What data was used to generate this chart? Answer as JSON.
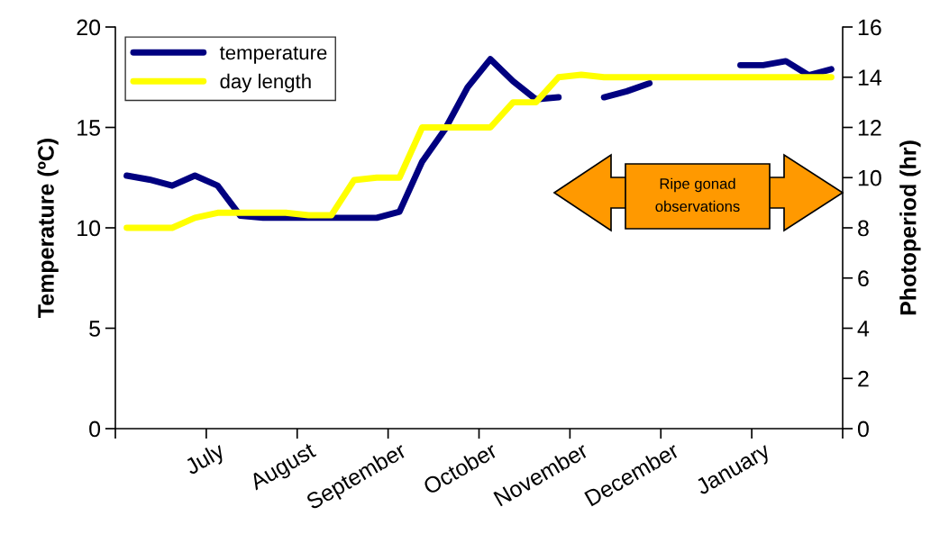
{
  "chart_data": {
    "type": "line",
    "ylabel": "Temperature (ºC)",
    "y2label": "Photoperiod (hr)",
    "categories": [
      null,
      null,
      null,
      null,
      "July",
      null,
      null,
      null,
      "August",
      null,
      null,
      null,
      "September",
      null,
      null,
      null,
      "October",
      null,
      null,
      null,
      "November",
      null,
      null,
      null,
      "December",
      null,
      null,
      null,
      "January",
      null,
      null,
      null
    ],
    "ylim": [
      0,
      20
    ],
    "yticks": [
      0,
      5,
      10,
      15,
      20
    ],
    "y2lim": [
      0,
      16
    ],
    "y2ticks": [
      0,
      2,
      4,
      6,
      8,
      10,
      12,
      14,
      16
    ],
    "series": [
      {
        "name": "temperature",
        "color": "#000080",
        "values": [
          12.6,
          12.4,
          12.1,
          12.6,
          12.1,
          10.6,
          10.5,
          10.5,
          10.5,
          10.5,
          10.5,
          10.5,
          10.8,
          13.3,
          14.9,
          17.0,
          18.4,
          17.3,
          16.4,
          16.5,
          null,
          16.5,
          16.8,
          17.2,
          null,
          null,
          null,
          18.1,
          18.1,
          18.3,
          17.6,
          17.9
        ]
      },
      {
        "name": "day length",
        "color": "#ffff00",
        "axis": "y2",
        "values": [
          8.0,
          8.0,
          8.0,
          8.4,
          8.6,
          8.6,
          8.6,
          8.6,
          8.5,
          8.5,
          9.9,
          10.0,
          10.0,
          12.0,
          12.0,
          12.0,
          12.0,
          13.0,
          13.0,
          14.0,
          14.1,
          14.0,
          14.0,
          14.0,
          14.0,
          14.0,
          14.0,
          14.0,
          14.0,
          14.0,
          14.0,
          14.0
        ]
      }
    ],
    "legend": "top left",
    "grid": false,
    "annotations": [
      "Ripe gonad observations"
    ]
  }
}
